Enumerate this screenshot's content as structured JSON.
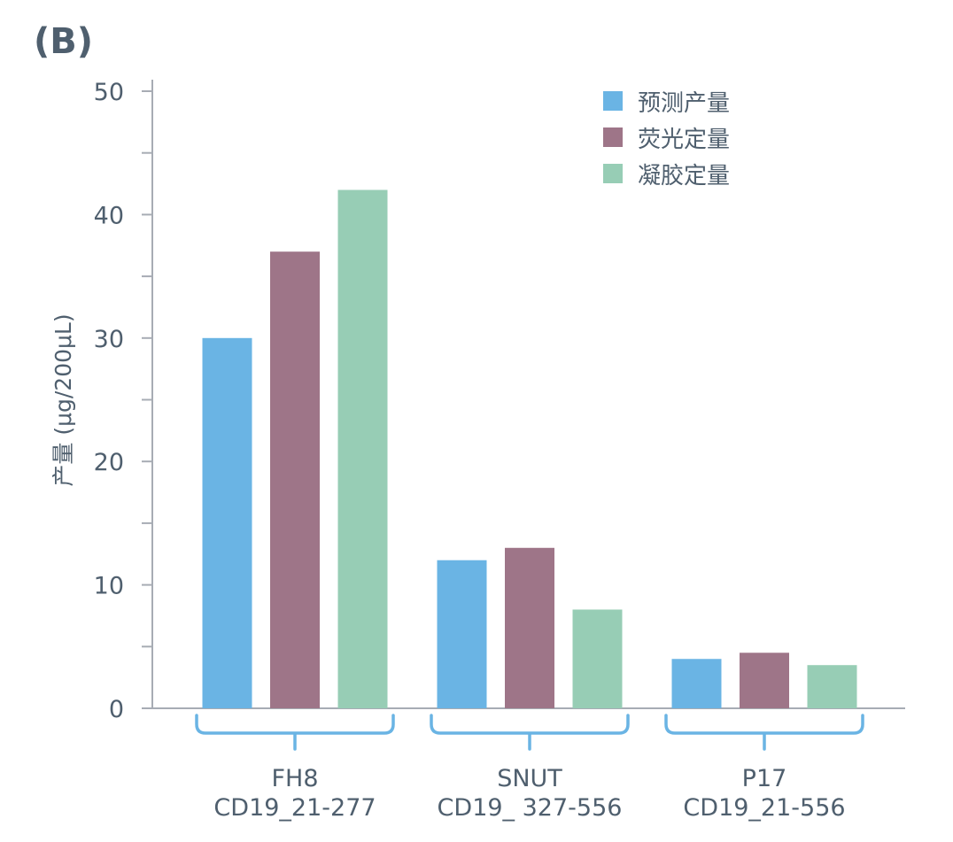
{
  "chart_data": {
    "type": "bar",
    "panel_label": "(B)",
    "ylabel": "产量 (μg/200μL)",
    "xlabel": "",
    "ylim": [
      0,
      50
    ],
    "yticks": [
      0,
      10,
      20,
      30,
      40,
      50
    ],
    "grid": false,
    "legend_position": "top-right",
    "categories": [
      {
        "name": "FH8",
        "sub": "CD19_21-277"
      },
      {
        "name": "SNUT",
        "sub": "CD19_ 327-556"
      },
      {
        "name": "P17",
        "sub": "CD19_21-556"
      }
    ],
    "series": [
      {
        "name": "预测产量",
        "color": "#6ab4e4",
        "values": [
          30,
          12,
          4
        ]
      },
      {
        "name": "荧光定量",
        "color": "#9e7588",
        "values": [
          37,
          13,
          4.5
        ]
      },
      {
        "name": "凝胶定量",
        "color": "#97cdb5",
        "values": [
          42,
          8,
          3.5
        ]
      }
    ],
    "axis_color": "#a7acb4",
    "bracket_color": "#6ab4e4"
  }
}
